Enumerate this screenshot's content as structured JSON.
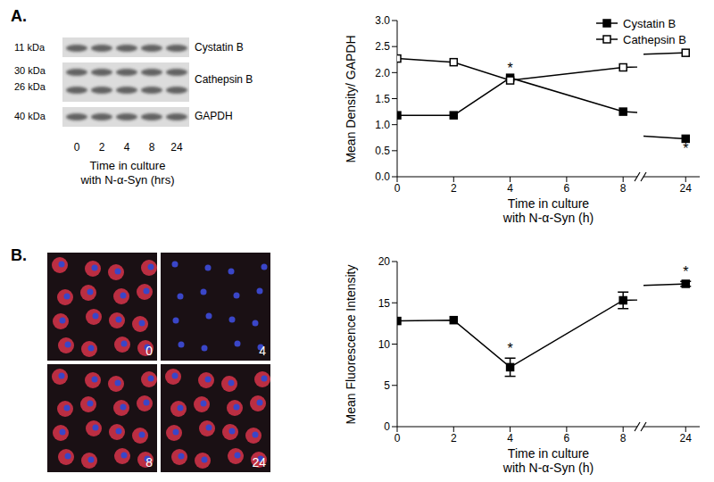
{
  "blot": {
    "panel": "A.",
    "proteins": [
      {
        "name": "Cystatin B",
        "kda": [
          "11 kDa"
        ]
      },
      {
        "name": "Cathepsin B",
        "kda": [
          "30 kDa",
          "26 kDa"
        ]
      },
      {
        "name": "GAPDH",
        "kda": [
          "40 kDa"
        ]
      }
    ],
    "lanes": [
      "0",
      "2",
      "4",
      "8",
      "24"
    ],
    "x_label": "Time in culture\nwith N-α-Syn (hrs)"
  },
  "micrographs": {
    "panel": "B.",
    "labels": [
      "0",
      "4",
      "8",
      "24"
    ]
  },
  "chart_data": [
    {
      "type": "line",
      "x": [
        0,
        2,
        4,
        8,
        24
      ],
      "xlim": [
        [
          0,
          8.5
        ],
        [
          22.5,
          24.5
        ]
      ],
      "xticks": [
        0,
        2,
        4,
        6,
        8,
        24
      ],
      "ylim": [
        0,
        3
      ],
      "yticks": [
        {
          "value": 0,
          "label": "0.0"
        },
        {
          "value": 0.5,
          "label": "0.5"
        },
        {
          "value": 1,
          "label": "1.0"
        },
        {
          "value": 1.5,
          "label": "1.5"
        },
        {
          "value": 2,
          "label": "2.0"
        },
        {
          "value": 2.5,
          "label": "2.5"
        },
        {
          "value": 3,
          "label": "3.0"
        }
      ],
      "x_label": "Time in culture\nwith N-α-Syn (h)",
      "y_label": "Mean Density/ GAPDH",
      "legend": "top right",
      "series": [
        {
          "name": "Cystatin B",
          "color": "#000000",
          "marker": "square",
          "values": [
            1.18,
            1.18,
            1.9,
            1.25,
            0.73
          ],
          "marks": [
            null,
            null,
            "*",
            null,
            "*"
          ]
        },
        {
          "name": "Cathepsin B",
          "color": "#000000",
          "marker": "square-open",
          "values": [
            2.27,
            2.2,
            1.85,
            2.1,
            2.38
          ]
        }
      ]
    },
    {
      "type": "line",
      "x": [
        0,
        2,
        4,
        8,
        24
      ],
      "xlim": [
        [
          0,
          8.5
        ],
        [
          22.5,
          24.5
        ]
      ],
      "xticks": [
        0,
        2,
        4,
        6,
        8,
        24
      ],
      "ylim": [
        0,
        20
      ],
      "yticks": [
        0,
        5,
        10,
        15,
        20
      ],
      "x_label": "Time in culture\nwith N-α-Syn (h)",
      "y_label": "Mean Fluorescence Intensity",
      "series": [
        {
          "color": "#000000",
          "marker": "square",
          "values": [
            12.8,
            12.9,
            7.2,
            15.3,
            17.3
          ],
          "errors": [
            0,
            0,
            1.1,
            1.0,
            0.3
          ],
          "marks": [
            null,
            null,
            "*",
            null,
            "*"
          ]
        }
      ]
    }
  ]
}
